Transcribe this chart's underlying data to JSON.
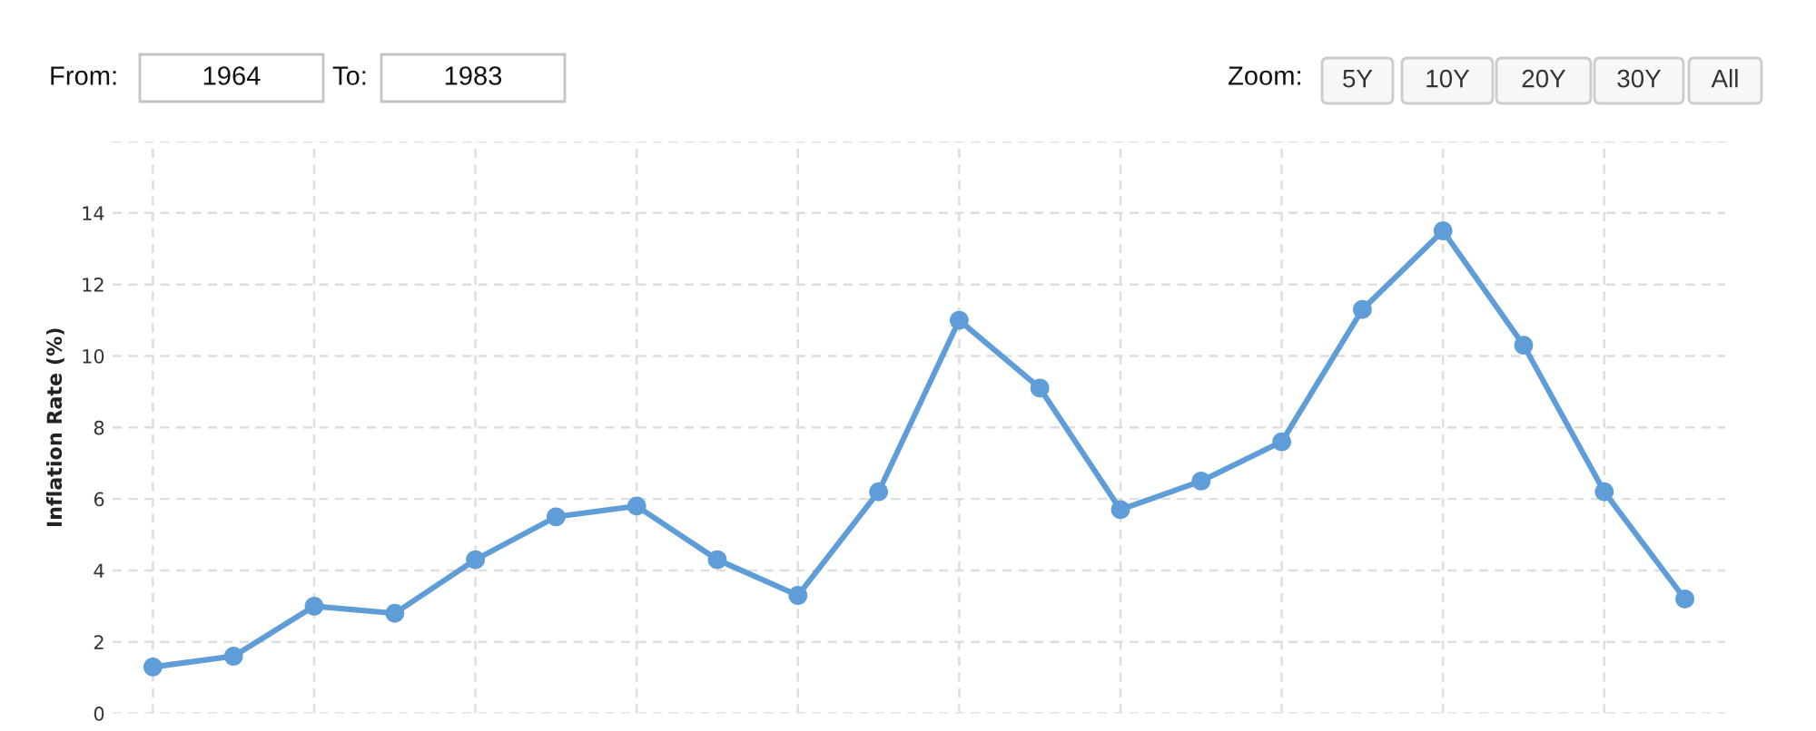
{
  "chart_data": {
    "type": "line",
    "ylabel": "Inflation Rate (%)",
    "annotations": [
      "From:",
      "1964",
      "To:",
      "1983",
      "Zoom:",
      "5Y",
      "10Y",
      "20Y",
      "30Y",
      "All"
    ],
    "categories": [
      null,
      null,
      null,
      null,
      null,
      null,
      null,
      null,
      null,
      null,
      null,
      null,
      null,
      null,
      null,
      null,
      null,
      null,
      null,
      null
    ],
    "series": [
      {
        "color": "#5f9dd8",
        "values": [
          1.3,
          1.6,
          3.0,
          2.8,
          4.3,
          5.5,
          5.8,
          4.3,
          3.3,
          6.2,
          11.0,
          9.1,
          5.7,
          6.5,
          7.6,
          11.3,
          13.5,
          10.3,
          6.2,
          3.2
        ]
      }
    ],
    "ylim": [
      0,
      16
    ],
    "yticks": [
      0,
      2,
      4,
      6,
      8,
      10,
      12,
      14,
      {
        "value": 16,
        "label": null
      }
    ],
    "marker": "circle",
    "line_style": "solid",
    "grid": true,
    "tick_labels": "y"
  }
}
